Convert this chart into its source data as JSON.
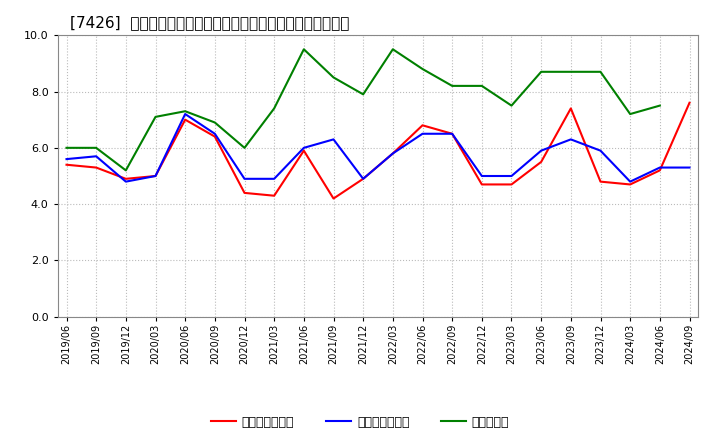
{
  "title": "[7426]  売上債権回転率、買入債務回転率、在庫回転率の推移",
  "dates": [
    "2019/06",
    "2019/09",
    "2019/12",
    "2020/03",
    "2020/06",
    "2020/09",
    "2020/12",
    "2021/03",
    "2021/06",
    "2021/09",
    "2021/12",
    "2022/03",
    "2022/06",
    "2022/09",
    "2022/12",
    "2023/03",
    "2023/06",
    "2023/09",
    "2023/12",
    "2024/03",
    "2024/06",
    "2024/09"
  ],
  "売上債権回転率": [
    5.4,
    5.3,
    4.9,
    5.0,
    7.0,
    6.4,
    4.4,
    4.3,
    5.9,
    4.2,
    4.9,
    5.8,
    6.8,
    6.5,
    4.7,
    4.7,
    5.5,
    7.4,
    4.8,
    4.7,
    5.2,
    7.6
  ],
  "買入債務回転率": [
    5.6,
    5.7,
    4.8,
    5.0,
    7.2,
    6.5,
    4.9,
    4.9,
    6.0,
    6.3,
    4.9,
    5.8,
    6.5,
    6.5,
    5.0,
    5.0,
    5.9,
    6.3,
    5.9,
    4.8,
    5.3,
    5.3
  ],
  "在庫回転率": [
    6.0,
    6.0,
    5.2,
    7.1,
    7.3,
    6.9,
    6.0,
    7.4,
    9.5,
    8.5,
    7.9,
    9.5,
    8.8,
    8.2,
    8.2,
    7.5,
    8.7,
    8.7,
    8.7,
    7.2,
    7.5,
    null
  ],
  "ylim": [
    0.0,
    10.0
  ],
  "yticks": [
    0.0,
    2.0,
    4.0,
    6.0,
    8.0,
    10.0
  ],
  "color_売上": "#ff0000",
  "color_買入": "#0000ff",
  "color_在庫": "#008000",
  "legend_labels": [
    "売上債権回転率",
    "買入債務回転率",
    "在庫回転率"
  ],
  "background_color": "#ffffff",
  "grid_color": "#bbbbbb",
  "linewidth": 1.5,
  "title_fontsize": 11
}
